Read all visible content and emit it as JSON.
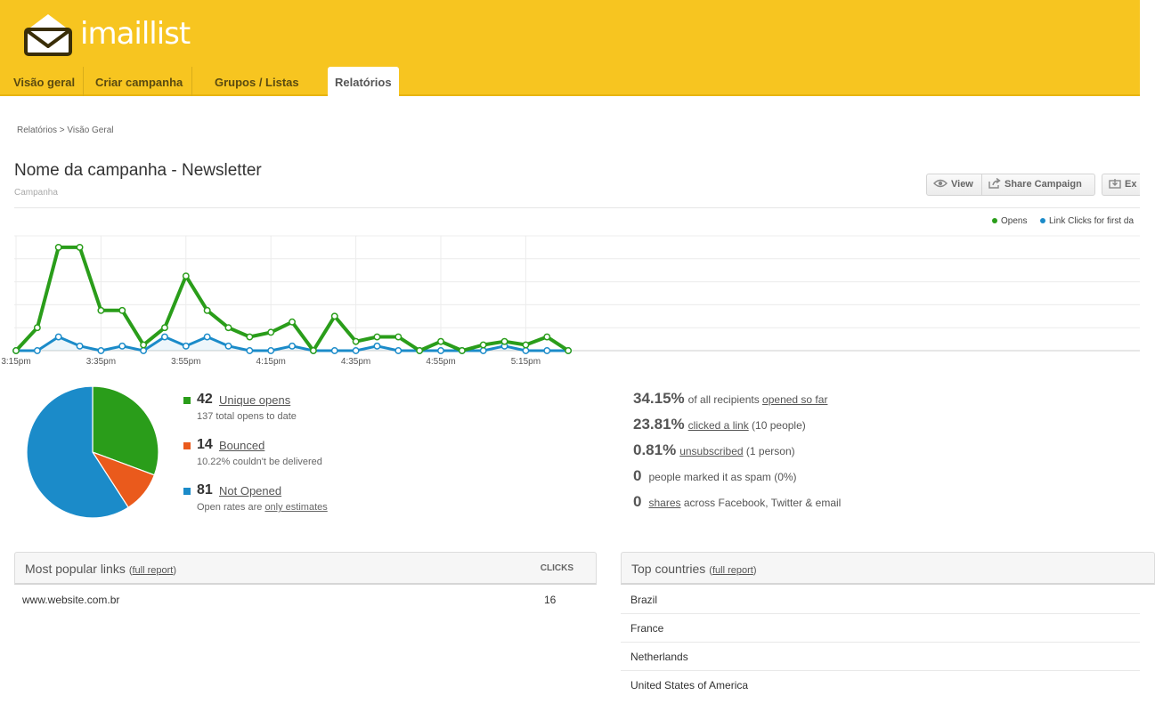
{
  "brand": {
    "logo_text": "imaillist"
  },
  "nav": {
    "items": [
      {
        "label": "Visão geral"
      },
      {
        "label": "Criar campanha"
      },
      {
        "label": "Grupos / Listas"
      },
      {
        "label": "Relatórios"
      }
    ],
    "active": "Relatórios"
  },
  "breadcrumb": "Relatórios > Visão Geral",
  "campaign": {
    "title": "Nome da campanha - Newsletter",
    "subtitle": "Campanha"
  },
  "toolbar": {
    "view_label": "View",
    "share_label": "Share Campaign",
    "export_label": "Ex"
  },
  "colors": {
    "accent": "#f7c520",
    "opens": "#2a9d1a",
    "clicks": "#1b8bc9",
    "bounced": "#ea5a1c",
    "not_opened": "#1b8bc9"
  },
  "chart_data": {
    "type": "line",
    "legend_position": "top-right",
    "x_tick_labels": [
      "3:15pm",
      "3:35pm",
      "3:55pm",
      "4:15pm",
      "4:35pm",
      "4:55pm",
      "5:15pm"
    ],
    "x_minutes": [
      0,
      5,
      10,
      15,
      20,
      25,
      30,
      35,
      40,
      45,
      50,
      55,
      60,
      65,
      70,
      75,
      80,
      85,
      90,
      95,
      100,
      105,
      110,
      115,
      120,
      125,
      130
    ],
    "ylim": [
      0,
      10
    ],
    "grid": true,
    "series": [
      {
        "name": "Opens",
        "color": "#2a9d1a",
        "values": [
          0,
          2,
          9,
          9,
          3.5,
          3.5,
          0.5,
          2,
          6.5,
          3.5,
          2,
          1.2,
          1.6,
          2.5,
          0,
          3,
          0.8,
          1.2,
          1.2,
          0,
          0.8,
          0,
          0.5,
          0.8,
          0.5,
          1.2,
          0
        ]
      },
      {
        "name": "Link Clicks for first da",
        "color": "#1b8bc9",
        "values": [
          0,
          0,
          1.2,
          0.4,
          0,
          0.4,
          0,
          1.2,
          0.4,
          1.2,
          0.4,
          0,
          0,
          0.4,
          0,
          0,
          0,
          0.4,
          0,
          0,
          0,
          0,
          0,
          0.4,
          0,
          0,
          0
        ]
      }
    ]
  },
  "pie": {
    "slices": [
      {
        "name": "Unique opens",
        "value": 42,
        "color": "#2a9d1a"
      },
      {
        "name": "Bounced",
        "value": 14,
        "color": "#ea5a1c"
      },
      {
        "name": "Not Opened",
        "value": 81,
        "color": "#1b8bc9"
      }
    ]
  },
  "stats": {
    "unique_opens": {
      "num": "42",
      "label": "Unique opens",
      "sub": "137 total opens to date"
    },
    "bounced": {
      "num": "14",
      "label": "Bounced",
      "sub": "10.22% couldn't be delivered"
    },
    "not_opened": {
      "num": "81",
      "label": "Not Opened",
      "sub_prefix": "Open rates are ",
      "sub_link": "only estimates"
    }
  },
  "summary": {
    "opened": {
      "value": "34.15%",
      "prefix": "of all recipients ",
      "link": "opened so far"
    },
    "clicked": {
      "value": "23.81%",
      "link": "clicked a link",
      "suffix": " (10 people)"
    },
    "unsubscribed": {
      "value": "0.81%",
      "link": "unsubscribed",
      "suffix": " (1 person)"
    },
    "spam": {
      "value": "0",
      "text": "people marked it as spam (0%)"
    },
    "shares": {
      "value": "0",
      "link": "shares",
      "suffix": " across Facebook, Twitter & email"
    }
  },
  "links_panel": {
    "title": "Most popular links",
    "full_report": "full report",
    "column": "CLICKS",
    "rows": [
      {
        "url": "www.website.com.br",
        "clicks": "16"
      }
    ]
  },
  "countries_panel": {
    "title": "Top countries",
    "full_report": "full report",
    "rows": [
      "Brazil",
      "France",
      "Netherlands",
      "United States of America"
    ]
  }
}
